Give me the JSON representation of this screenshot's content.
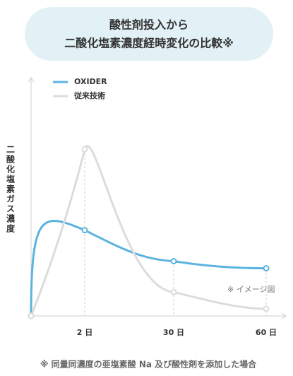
{
  "chart_data": {
    "type": "line",
    "title": [
      "酸性剤投入から",
      "二酸化塩素濃度経時変化の比較※"
    ],
    "y_label": "二酸化塩素ガス濃度",
    "categories": [
      null,
      "2 日",
      "30 日",
      "60 日"
    ],
    "series": [
      {
        "name": "OXIDER",
        "color": "#5bb3e0",
        "values": [
          0,
          36,
          23,
          20
        ]
      },
      {
        "name": "従来技術",
        "color": "#dcdcdc",
        "values": [
          0,
          70,
          10,
          3
        ]
      }
    ],
    "ylim": [
      0,
      100
    ],
    "annotation": "※ イメージ図",
    "footnote": "※ 同量同濃度の亜塩素酸 Na 及び酸性剤を添加した場合"
  }
}
